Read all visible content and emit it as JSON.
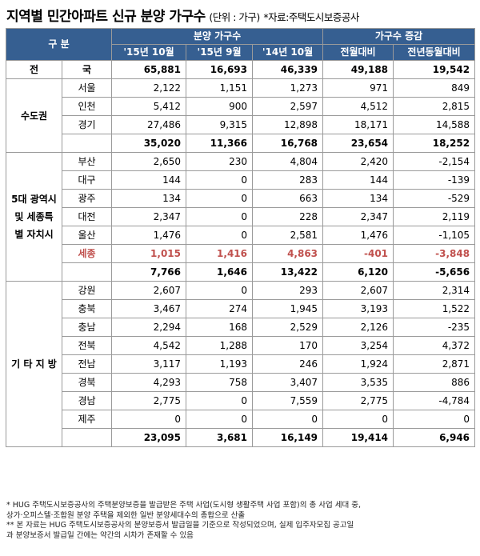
{
  "title": {
    "main": "지역별 민간아파트 신규 분양 가구수",
    "unit": "(단위 : 가구)",
    "source": "*자료:주택도시보증공사"
  },
  "header": {
    "gubun": "구    분",
    "sales_group": "분양 가구수",
    "change_group": "가구수 증감",
    "cols": [
      "'15년 10월",
      "'15년 9월",
      "'14년 10월",
      "전월대비",
      "전년동월대비"
    ]
  },
  "total": {
    "label1": "전",
    "label2": "국",
    "values": [
      "65,881",
      "16,693",
      "46,339",
      "49,188",
      "19,542"
    ]
  },
  "metro": {
    "group": "수도권",
    "rows": [
      {
        "region": "서울",
        "values": [
          "2,122",
          "1,151",
          "1,273",
          "971",
          "849"
        ]
      },
      {
        "region": "인천",
        "values": [
          "5,412",
          "900",
          "2,597",
          "4,512",
          "2,815"
        ]
      },
      {
        "region": "경기",
        "values": [
          "27,486",
          "9,315",
          "12,898",
          "18,171",
          "14,588"
        ]
      }
    ],
    "subtotal": [
      "35,020",
      "11,366",
      "16,768",
      "23,654",
      "18,252"
    ]
  },
  "cities": {
    "group": "5대 광역시 및 세종특별 자치시",
    "rows": [
      {
        "region": "부산",
        "values": [
          "2,650",
          "230",
          "4,804",
          "2,420",
          "-2,154"
        ]
      },
      {
        "region": "대구",
        "values": [
          "144",
          "0",
          "283",
          "144",
          "-139"
        ]
      },
      {
        "region": "광주",
        "values": [
          "134",
          "0",
          "663",
          "134",
          "-529"
        ]
      },
      {
        "region": "대전",
        "values": [
          "2,347",
          "0",
          "228",
          "2,347",
          "2,119"
        ]
      },
      {
        "region": "울산",
        "values": [
          "1,476",
          "0",
          "2,581",
          "1,476",
          "-1,105"
        ]
      },
      {
        "region": "세종",
        "values": [
          "1,015",
          "1,416",
          "4,863",
          "-401",
          "-3,848"
        ]
      }
    ],
    "subtotal": [
      "7,766",
      "1,646",
      "13,422",
      "6,120",
      "-5,656"
    ]
  },
  "others": {
    "group": "기  타  지  방",
    "rows": [
      {
        "region": "강원",
        "values": [
          "2,607",
          "0",
          "293",
          "2,607",
          "2,314"
        ]
      },
      {
        "region": "충북",
        "values": [
          "3,467",
          "274",
          "1,945",
          "3,193",
          "1,522"
        ]
      },
      {
        "region": "충남",
        "values": [
          "2,294",
          "168",
          "2,529",
          "2,126",
          "-235"
        ]
      },
      {
        "region": "전북",
        "values": [
          "4,542",
          "1,288",
          "170",
          "3,254",
          "4,372"
        ]
      },
      {
        "region": "전남",
        "values": [
          "3,117",
          "1,193",
          "246",
          "1,924",
          "2,871"
        ]
      },
      {
        "region": "경북",
        "values": [
          "4,293",
          "758",
          "3,407",
          "3,535",
          "886"
        ]
      },
      {
        "region": "경남",
        "values": [
          "2,775",
          "0",
          "7,559",
          "2,775",
          "-4,784"
        ]
      },
      {
        "region": "제주",
        "values": [
          "0",
          "0",
          "0",
          "0",
          "0"
        ]
      }
    ],
    "subtotal": [
      "23,095",
      "3,681",
      "16,149",
      "19,414",
      "6,946"
    ]
  },
  "notes": [
    "* HUG 주택도시보증공사의 주택분양보증을 발급받은 주택 사업(도시형 생활주택 사업 포함)의 총 사업 세대 중,",
    "  상가·오피스텔·조합원 분양 주택을 제외한 일반 분양세대수의 총합으로 산출",
    "** 본 자료는 HUG 주택도시보증공사의 분양보증서 발급일을 기준으로 작성되었으며, 실제 입주자모집 공고일",
    "   과 분양보증서 발급일 간에는 약간의 시차가 존재할 수 있음"
  ],
  "colors": {
    "header_bg": "#365f91",
    "highlight_red": "#c0504d"
  }
}
